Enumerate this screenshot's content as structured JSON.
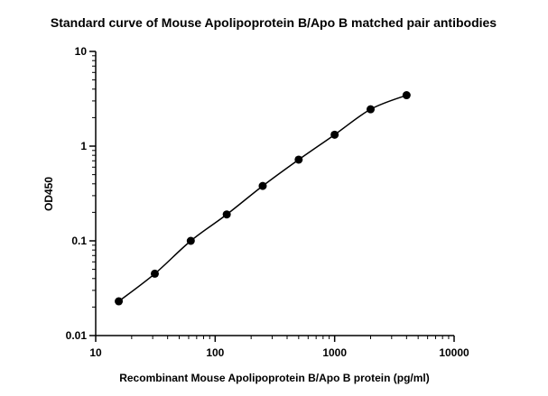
{
  "chart_data": {
    "type": "scatter",
    "title": "Standard curve of Mouse Apolipoprotein B/Apo B matched pair antibodies",
    "xlabel": "Recombinant Mouse Apolipoprotein B/Apo B protein (pg/ml)",
    "ylabel": "OD450",
    "x_scale": "log",
    "y_scale": "log",
    "xlim": [
      10,
      10000
    ],
    "ylim": [
      0.01,
      10
    ],
    "x_ticks": [
      "10",
      "100",
      "1000",
      "10000"
    ],
    "y_ticks": [
      "0.01",
      "0.1",
      "1",
      "10"
    ],
    "grid": false,
    "legend": "none",
    "series": [
      {
        "x": [
          15.6,
          31.25,
          62.5,
          125,
          250,
          500,
          1000,
          2000,
          4000
        ],
        "y": [
          0.023,
          0.045,
          0.1,
          0.19,
          0.38,
          0.72,
          1.32,
          2.45,
          3.45
        ],
        "marker_color": "#000000",
        "curve": "fitted"
      }
    ]
  }
}
